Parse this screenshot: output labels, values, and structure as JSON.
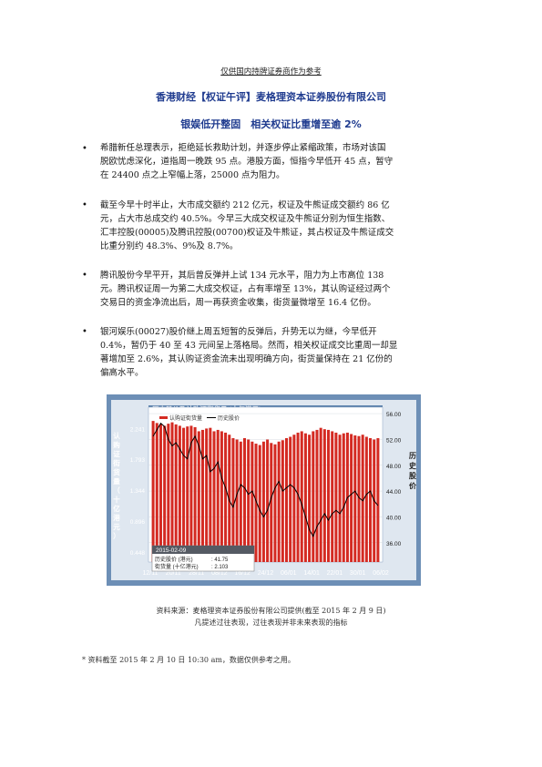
{
  "header": {
    "disclaimer": "仅供国内持牌证券商作为参考",
    "title": "香港财经【权证午评】麦格理资本证券股份有限公司",
    "subtitle": "银娱低开整固　相关权证比重增至逾 2%"
  },
  "bullets": [
    {
      "symbol": "•",
      "lines": [
        "希腊新任总理表示，拒绝延长救助计划，并逐步停止紧缩政策，市场对该国",
        "脱欧忧虑深化，道指周一晚跌 95 点。港股方面，恒指今早低开 45 点，暂守",
        "在 24400 点之上窄幅上落，25000 点为阻力。"
      ]
    },
    {
      "symbol": "•",
      "lines": [
        "截至今早十时半止，大市成交额约 212 亿元，权证及牛熊证成交额约 86 亿",
        "元，占大市总成交约 40.5%。今早三大成交权证及牛熊证分别为恒生指数、",
        "汇丰控股(00005)及腾讯控股(00700)权证及牛熊证，其占权证及牛熊证成交",
        "比重分别约 48.3%、9%及 8.7%。"
      ]
    },
    {
      "symbol": "•",
      "lines": [
        "腾讯股份今早平开，其后曾反弹并上试 134 元水平，阻力为上市高位 138",
        "元。腾讯权证周一为第二大成交权证，占有率增至 13%，其认购证经过两个",
        "交易日的资金净流出后，周一再获资金收集，街货量微增至 16.4 亿份。"
      ]
    },
    {
      "symbol": "•",
      "lines": [
        "银河娱乐(00027)股价继上周五短暂的反弹后，升势无以为继，今早低开",
        "0.4%，暂仍于 40 至 43 元间呈上落格局。然而，相关权证成交比重周一却显",
        "著增加至 2.6%，其认购证资金流未出现明确方向，街货量保持在 21 亿份的",
        "偏高水平。"
      ]
    }
  ],
  "chart": {
    "title": "历史股价及认购证街货量 (十亿港元)",
    "legend": [
      "认购证街货量",
      "历史股价"
    ],
    "left_axis_label": [
      "认",
      "购",
      "证",
      "街",
      "货",
      "量",
      "（",
      "十",
      "亿",
      "港",
      "元",
      "）"
    ],
    "right_axis_label": [
      "历",
      "史",
      "股",
      "价"
    ],
    "left_ticks": [
      "2.241",
      "1.793",
      "1.344",
      "0.896",
      "0.448"
    ],
    "right_ticks": [
      "56.00",
      "52.00",
      "48.00",
      "44.00",
      "40.00",
      "36.00"
    ],
    "x_ticks": [
      "12/11",
      "20/11",
      "28/11",
      "08/12",
      "16/12",
      "24/12",
      "06/01",
      "14/01",
      "22/01",
      "30/01",
      "06/02"
    ],
    "tooltip": {
      "date": "2015-02-09",
      "row1_label": "历史股价 (港元)",
      "row1_value": ": 41.75",
      "row2_label": "街货量 (十亿港元)",
      "row2_value": ": 2.103"
    },
    "colors": {
      "bars": "#d42a22",
      "price_line": "#000000",
      "frame": "#6d8fb6",
      "plot_bg": "#ffffff"
    }
  },
  "chart_data": {
    "type": "bar",
    "title": "历史股价及认购证街货量 (十亿港元)",
    "ylabel": "认购证街货量 (十亿港元)",
    "y2label": "历史股价",
    "ylim": [
      0.3,
      2.55
    ],
    "y2lim": [
      33.0,
      57.0
    ],
    "series": [
      {
        "name": "认购证街货量",
        "type": "bar",
        "axis": "left",
        "values": [
          2.35,
          2.32,
          2.3,
          2.28,
          2.31,
          2.33,
          2.3,
          2.28,
          2.25,
          2.27,
          2.28,
          2.26,
          2.2,
          2.22,
          2.24,
          2.25,
          2.2,
          2.22,
          2.2,
          2.18,
          2.15,
          2.1,
          2.08,
          2.05,
          2.1,
          2.08,
          2.05,
          2.02,
          2.0,
          2.05,
          2.08,
          2.03,
          2.01,
          2.05,
          2.07,
          2.1,
          2.12,
          2.15,
          2.18,
          2.2,
          2.17,
          2.15,
          2.2,
          2.22,
          2.25,
          2.23,
          2.22,
          2.2,
          2.18,
          2.15,
          2.17,
          2.18,
          2.16,
          2.14,
          2.13,
          2.15,
          2.12,
          2.1,
          2.08,
          2.1
        ]
      },
      {
        "name": "历史股价",
        "type": "line",
        "axis": "right",
        "values": [
          52.5,
          53.5,
          54.5,
          54.0,
          52.0,
          51.0,
          51.5,
          50.5,
          49.5,
          49.0,
          51.5,
          52.5,
          51.0,
          49.0,
          49.5,
          47.0,
          47.5,
          48.5,
          46.0,
          44.5,
          42.5,
          41.5,
          43.5,
          45.0,
          44.5,
          43.5,
          44.0,
          42.5,
          41.0,
          40.0,
          41.0,
          43.0,
          44.5,
          45.5,
          44.0,
          44.5,
          45.0,
          44.5,
          43.5,
          42.0,
          40.0,
          38.0,
          37.0,
          38.5,
          39.5,
          40.5,
          39.5,
          40.5,
          41.0,
          40.5,
          41.5,
          43.0,
          43.5,
          44.0,
          43.0,
          42.5,
          43.5,
          44.0,
          42.5,
          41.75
        ]
      }
    ],
    "x_ticks": [
      "12/11",
      "20/11",
      "28/11",
      "08/12",
      "16/12",
      "24/12",
      "06/01",
      "14/01",
      "22/01",
      "30/01",
      "06/02"
    ],
    "grid": true,
    "legend": "top-left"
  },
  "source": {
    "line1": "资料来源：麦格理资本证券股份有限公司提供(截至 2015 年 2 月 9 日)",
    "line2": "凡提述过往表现，过往表现并非未来表现的指标"
  },
  "footnote": "* 资料截至 2015 年 2 月 10 日 10:30 am，数据仅供参考之用。"
}
